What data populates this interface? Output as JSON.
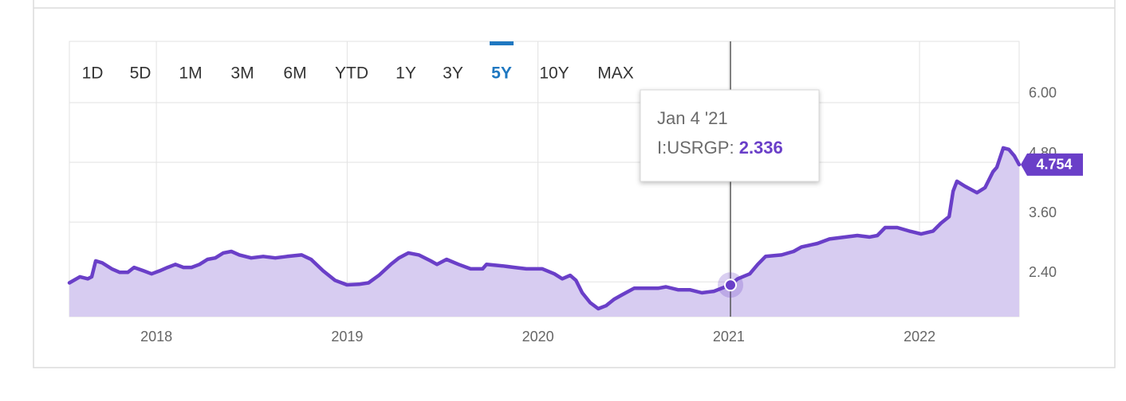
{
  "chart_data": {
    "type": "area",
    "range_buttons": [
      "1D",
      "5D",
      "1M",
      "3M",
      "6M",
      "YTD",
      "1Y",
      "3Y",
      "5Y",
      "10Y",
      "MAX"
    ],
    "selected_range": "5Y",
    "xlim": [
      2017.544,
      2022.522
    ],
    "xticks": [
      2018,
      2019,
      2020,
      2021,
      2022
    ],
    "ylim": [
      1.7,
      7.23
    ],
    "yticks": [
      {
        "value": 2.4,
        "label": "2.40"
      },
      {
        "value": 3.6,
        "label": "3.60"
      },
      {
        "value": 4.8,
        "label": "4.80"
      },
      {
        "value": 6,
        "label": "6.00"
      }
    ],
    "grid": true,
    "series": [
      {
        "color": "#6a3fc8",
        "fill": "#d7ccf1",
        "x": [
          2017.544,
          2017.599,
          2017.641,
          2017.661,
          2017.682,
          2017.716,
          2017.766,
          2017.808,
          2017.85,
          2017.883,
          2017.933,
          2017.975,
          2018.017,
          2018.059,
          2018.1,
          2018.142,
          2018.184,
          2018.226,
          2018.268,
          2018.309,
          2018.351,
          2018.393,
          2018.435,
          2018.497,
          2018.56,
          2018.623,
          2018.685,
          2018.761,
          2018.811,
          2018.874,
          2018.936,
          2018.999,
          2019.062,
          2019.112,
          2019.166,
          2019.229,
          2019.271,
          2019.321,
          2019.375,
          2019.438,
          2019.471,
          2019.521,
          2019.584,
          2019.647,
          2019.71,
          2019.73,
          2019.814,
          2019.877,
          2019.939,
          2020.023,
          2020.086,
          2020.127,
          2020.169,
          2020.199,
          2020.232,
          2020.274,
          2020.316,
          2020.357,
          2020.399,
          2020.441,
          2020.504,
          2020.566,
          2020.629,
          2020.671,
          2020.734,
          2020.796,
          2020.859,
          2020.922,
          2021.009,
          2021.047,
          2021.11,
          2021.152,
          2021.193,
          2021.277,
          2021.34,
          2021.381,
          2021.465,
          2021.528,
          2021.611,
          2021.674,
          2021.737,
          2021.779,
          2021.82,
          2021.883,
          2021.946,
          2022.008,
          2022.071,
          2022.113,
          2022.155,
          2022.176,
          2022.196,
          2022.238,
          2022.301,
          2022.343,
          2022.385,
          2022.405,
          2022.439,
          2022.468,
          2022.497,
          2022.522
        ],
        "values": [
          2.38,
          2.5,
          2.46,
          2.5,
          2.82,
          2.78,
          2.66,
          2.59,
          2.59,
          2.69,
          2.62,
          2.56,
          2.62,
          2.69,
          2.75,
          2.69,
          2.69,
          2.75,
          2.85,
          2.88,
          2.98,
          3.01,
          2.94,
          2.88,
          2.91,
          2.88,
          2.91,
          2.94,
          2.85,
          2.62,
          2.43,
          2.34,
          2.35,
          2.38,
          2.53,
          2.75,
          2.88,
          2.98,
          2.94,
          2.82,
          2.75,
          2.85,
          2.75,
          2.66,
          2.66,
          2.75,
          2.72,
          2.69,
          2.66,
          2.66,
          2.56,
          2.46,
          2.53,
          2.43,
          2.18,
          1.98,
          1.86,
          1.92,
          2.05,
          2.14,
          2.27,
          2.27,
          2.27,
          2.3,
          2.24,
          2.24,
          2.18,
          2.21,
          2.34,
          2.46,
          2.56,
          2.75,
          2.91,
          2.94,
          3.01,
          3.1,
          3.17,
          3.26,
          3.3,
          3.33,
          3.3,
          3.33,
          3.49,
          3.49,
          3.42,
          3.36,
          3.42,
          3.58,
          3.71,
          4.22,
          4.42,
          4.32,
          4.19,
          4.29,
          4.61,
          4.7,
          5.09,
          5.06,
          4.93,
          4.754
        ]
      }
    ],
    "tooltip": {
      "date": "Jan 4 '21",
      "label": "I:USRGP:",
      "x": 2021.009,
      "value": 2.336
    }
  }
}
